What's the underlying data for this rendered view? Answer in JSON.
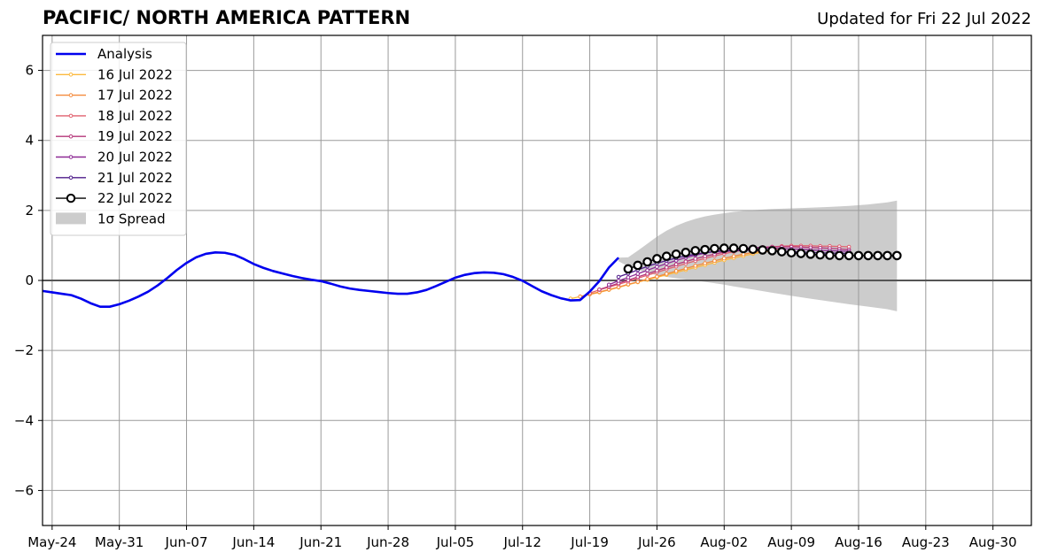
{
  "header": {
    "title": "PACIFIC/ NORTH AMERICA PATTERN",
    "updated": "Updated for Fri 22 Jul 2022"
  },
  "chart_data": {
    "type": "line",
    "title": "PACIFIC/ NORTH AMERICA PATTERN",
    "subtitle": "Updated for Fri 22 Jul 2022",
    "xlabel": "",
    "ylabel": "",
    "x_range": [
      "2022-05-23",
      "2022-09-03"
    ],
    "ylim": [
      -7,
      7
    ],
    "y_ticks": [
      -6,
      -4,
      -2,
      0,
      2,
      4,
      6
    ],
    "y_tick_labels": [
      "−6",
      "−4",
      "−2",
      "0",
      "2",
      "4",
      "6"
    ],
    "x_ticks": [
      "2022-05-24",
      "2022-05-31",
      "2022-06-07",
      "2022-06-14",
      "2022-06-21",
      "2022-06-28",
      "2022-07-05",
      "2022-07-12",
      "2022-07-19",
      "2022-07-26",
      "2022-08-02",
      "2022-08-09",
      "2022-08-16",
      "2022-08-23",
      "2022-08-30"
    ],
    "x_tick_labels": [
      "May-24",
      "May-31",
      "Jun-07",
      "Jun-14",
      "Jun-21",
      "Jun-28",
      "Jul-05",
      "Jul-12",
      "Jul-19",
      "Jul-26",
      "Aug-02",
      "Aug-09",
      "Aug-16",
      "Aug-23",
      "Aug-30"
    ],
    "grid": true,
    "legend": "top-left",
    "analysis": {
      "name": "Analysis",
      "color": "#0000ee",
      "x": [
        "2022-05-23",
        "2022-05-24",
        "2022-05-25",
        "2022-05-26",
        "2022-05-27",
        "2022-05-28",
        "2022-05-29",
        "2022-05-30",
        "2022-05-31",
        "2022-06-01",
        "2022-06-02",
        "2022-06-03",
        "2022-06-04",
        "2022-06-05",
        "2022-06-06",
        "2022-06-07",
        "2022-06-08",
        "2022-06-09",
        "2022-06-10",
        "2022-06-11",
        "2022-06-12",
        "2022-06-13",
        "2022-06-14",
        "2022-06-15",
        "2022-06-16",
        "2022-06-17",
        "2022-06-18",
        "2022-06-19",
        "2022-06-20",
        "2022-06-21",
        "2022-06-22",
        "2022-06-23",
        "2022-06-24",
        "2022-06-25",
        "2022-06-26",
        "2022-06-27",
        "2022-06-28",
        "2022-06-29",
        "2022-06-30",
        "2022-07-01",
        "2022-07-02",
        "2022-07-03",
        "2022-07-04",
        "2022-07-05",
        "2022-07-06",
        "2022-07-07",
        "2022-07-08",
        "2022-07-09",
        "2022-07-10",
        "2022-07-11",
        "2022-07-12",
        "2022-07-13",
        "2022-07-14",
        "2022-07-15",
        "2022-07-16",
        "2022-07-17",
        "2022-07-18",
        "2022-07-19",
        "2022-07-20",
        "2022-07-21",
        "2022-07-22"
      ],
      "values": [
        -0.3,
        -0.34,
        -0.38,
        -0.42,
        -0.52,
        -0.65,
        -0.75,
        -0.75,
        -0.68,
        -0.58,
        -0.46,
        -0.32,
        -0.14,
        0.07,
        0.3,
        0.5,
        0.66,
        0.76,
        0.8,
        0.79,
        0.73,
        0.61,
        0.47,
        0.36,
        0.27,
        0.2,
        0.13,
        0.07,
        0.02,
        -0.02,
        -0.09,
        -0.17,
        -0.23,
        -0.27,
        -0.3,
        -0.33,
        -0.36,
        -0.38,
        -0.38,
        -0.34,
        -0.27,
        -0.16,
        -0.04,
        0.08,
        0.16,
        0.21,
        0.23,
        0.22,
        0.18,
        0.1,
        -0.01,
        -0.16,
        -0.31,
        -0.42,
        -0.51,
        -0.57,
        -0.56,
        -0.32,
        -0.02,
        0.37,
        0.65
      ]
    },
    "spread": {
      "name": "1σ Spread",
      "color": "#cccccc",
      "x": [
        "2022-07-22",
        "2022-07-23",
        "2022-07-24",
        "2022-07-25",
        "2022-07-26",
        "2022-07-27",
        "2022-07-28",
        "2022-07-29",
        "2022-07-30",
        "2022-07-31",
        "2022-08-01",
        "2022-08-02",
        "2022-08-03",
        "2022-08-05",
        "2022-08-07",
        "2022-08-09",
        "2022-08-11",
        "2022-08-13",
        "2022-08-15",
        "2022-08-17",
        "2022-08-19",
        "2022-08-20"
      ],
      "upper": [
        0.65,
        0.66,
        0.85,
        1.05,
        1.25,
        1.42,
        1.56,
        1.67,
        1.76,
        1.83,
        1.88,
        1.92,
        1.96,
        2.01,
        2.04,
        2.06,
        2.08,
        2.1,
        2.13,
        2.17,
        2.23,
        2.28
      ],
      "lower": [
        0.55,
        0.4,
        0.3,
        0.22,
        0.15,
        0.1,
        0.06,
        0.03,
        0.0,
        -0.04,
        -0.08,
        -0.12,
        -0.17,
        -0.26,
        -0.35,
        -0.44,
        -0.52,
        -0.6,
        -0.68,
        -0.75,
        -0.82,
        -0.88
      ]
    },
    "series": [
      {
        "name": "16 Jul 2022",
        "color": "#fcb93d",
        "start": "2022-07-17",
        "values": [
          -0.52,
          -0.46,
          -0.4,
          -0.34,
          -0.27,
          -0.2,
          -0.12,
          -0.05,
          0.02,
          0.09,
          0.16,
          0.23,
          0.3,
          0.37,
          0.44,
          0.51,
          0.58,
          0.64,
          0.7,
          0.76,
          0.81,
          0.85
        ]
      },
      {
        "name": "17 Jul 2022",
        "color": "#f48a3c",
        "start": "2022-07-18",
        "values": [
          -0.46,
          -0.39,
          -0.33,
          -0.26,
          -0.19,
          -0.11,
          -0.04,
          0.04,
          0.11,
          0.19,
          0.27,
          0.34,
          0.42,
          0.49,
          0.56,
          0.63,
          0.69,
          0.75,
          0.8,
          0.84,
          0.88,
          0.91
        ]
      },
      {
        "name": "18 Jul 2022",
        "color": "#e1606e",
        "start": "2022-07-19",
        "values": [
          -0.36,
          -0.27,
          -0.19,
          -0.11,
          -0.03,
          0.06,
          0.15,
          0.23,
          0.32,
          0.4,
          0.48,
          0.56,
          0.63,
          0.7,
          0.76,
          0.82,
          0.87,
          0.91,
          0.94,
          0.96,
          0.98,
          0.99,
          0.99,
          0.99,
          0.98,
          0.98,
          0.97,
          0.96
        ]
      },
      {
        "name": "19 Jul 2022",
        "color": "#b5367a",
        "start": "2022-07-20",
        "values": [
          -0.26,
          -0.17,
          -0.08,
          0.01,
          0.1,
          0.19,
          0.28,
          0.37,
          0.46,
          0.54,
          0.62,
          0.69,
          0.75,
          0.81,
          0.86,
          0.9,
          0.93,
          0.95,
          0.96,
          0.96,
          0.96,
          0.95,
          0.94,
          0.93,
          0.92,
          0.9,
          0.88
        ]
      },
      {
        "name": "20 Jul 2022",
        "color": "#8e2a95",
        "start": "2022-07-21",
        "values": [
          -0.12,
          -0.01,
          0.09,
          0.19,
          0.29,
          0.39,
          0.48,
          0.57,
          0.65,
          0.72,
          0.78,
          0.83,
          0.87,
          0.9,
          0.92,
          0.93,
          0.93,
          0.92,
          0.91,
          0.9,
          0.89,
          0.87,
          0.86,
          0.85,
          0.84,
          0.83
        ]
      },
      {
        "name": "21 Jul 2022",
        "color": "#4e1c8a",
        "start": "2022-07-22",
        "values": [
          0.1,
          0.2,
          0.3,
          0.4,
          0.49,
          0.57,
          0.64,
          0.7,
          0.75,
          0.79,
          0.82,
          0.84,
          0.85,
          0.86,
          0.86,
          0.85,
          0.84,
          0.83,
          0.82,
          0.81,
          0.8,
          0.79,
          0.78,
          0.78,
          0.77
        ]
      },
      {
        "name": "22 Jul 2022",
        "color": "#000000",
        "start": "2022-07-23",
        "values": [
          0.33,
          0.43,
          0.53,
          0.62,
          0.69,
          0.75,
          0.8,
          0.85,
          0.88,
          0.91,
          0.92,
          0.92,
          0.91,
          0.89,
          0.87,
          0.85,
          0.82,
          0.79,
          0.77,
          0.75,
          0.73,
          0.72,
          0.71,
          0.71,
          0.71,
          0.71,
          0.71,
          0.71,
          0.71
        ]
      }
    ]
  }
}
